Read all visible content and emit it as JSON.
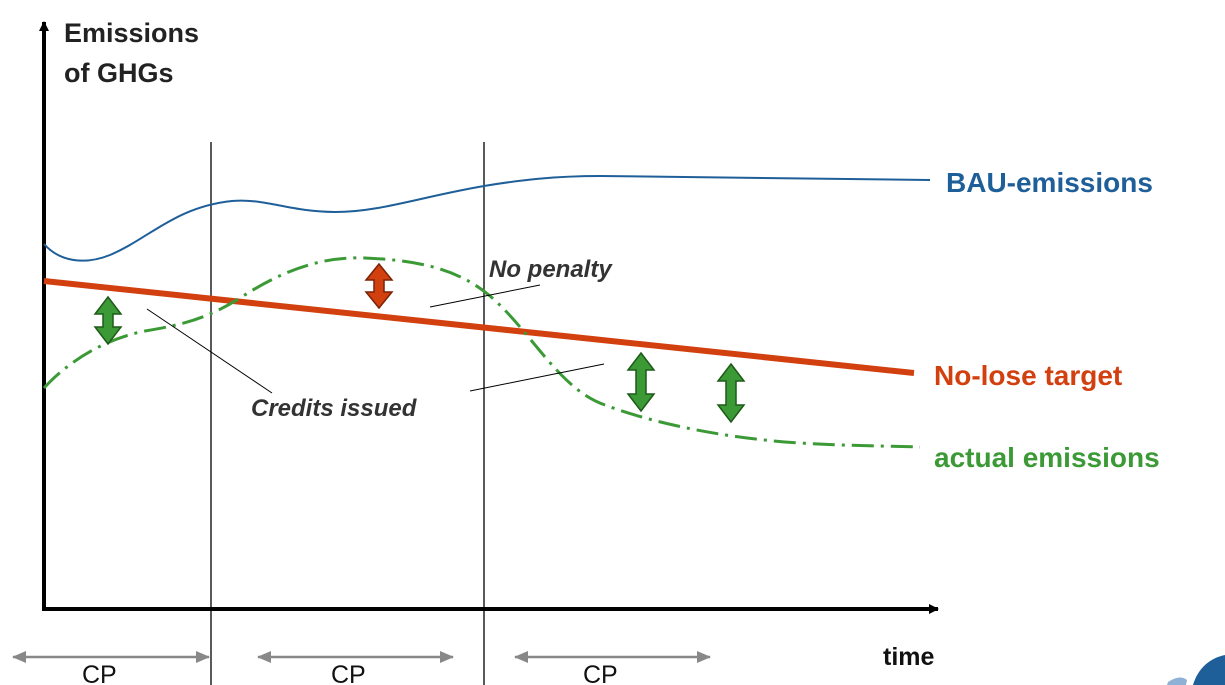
{
  "diagram": {
    "y_axis_label_line1": "Emissions",
    "y_axis_label_line2": "of GHGs",
    "x_axis_label": "time",
    "bau_label": "BAU-emissions",
    "target_label": "No-lose target",
    "actual_label": "actual emissions",
    "no_penalty_label": "No penalty",
    "credits_label": "Credits issued",
    "periods": [
      {
        "label": "CP"
      },
      {
        "label": "CP"
      },
      {
        "label": "CP"
      }
    ],
    "colors": {
      "axis": "#000000",
      "bau": "#1f5f99",
      "target": "#d2400f",
      "actual": "#3c9a36",
      "credit_arrow": "#3c9a36",
      "penalty_arrow": "#d2400f",
      "period_arrow": "#888888",
      "logo": "#1f5f99"
    }
  }
}
